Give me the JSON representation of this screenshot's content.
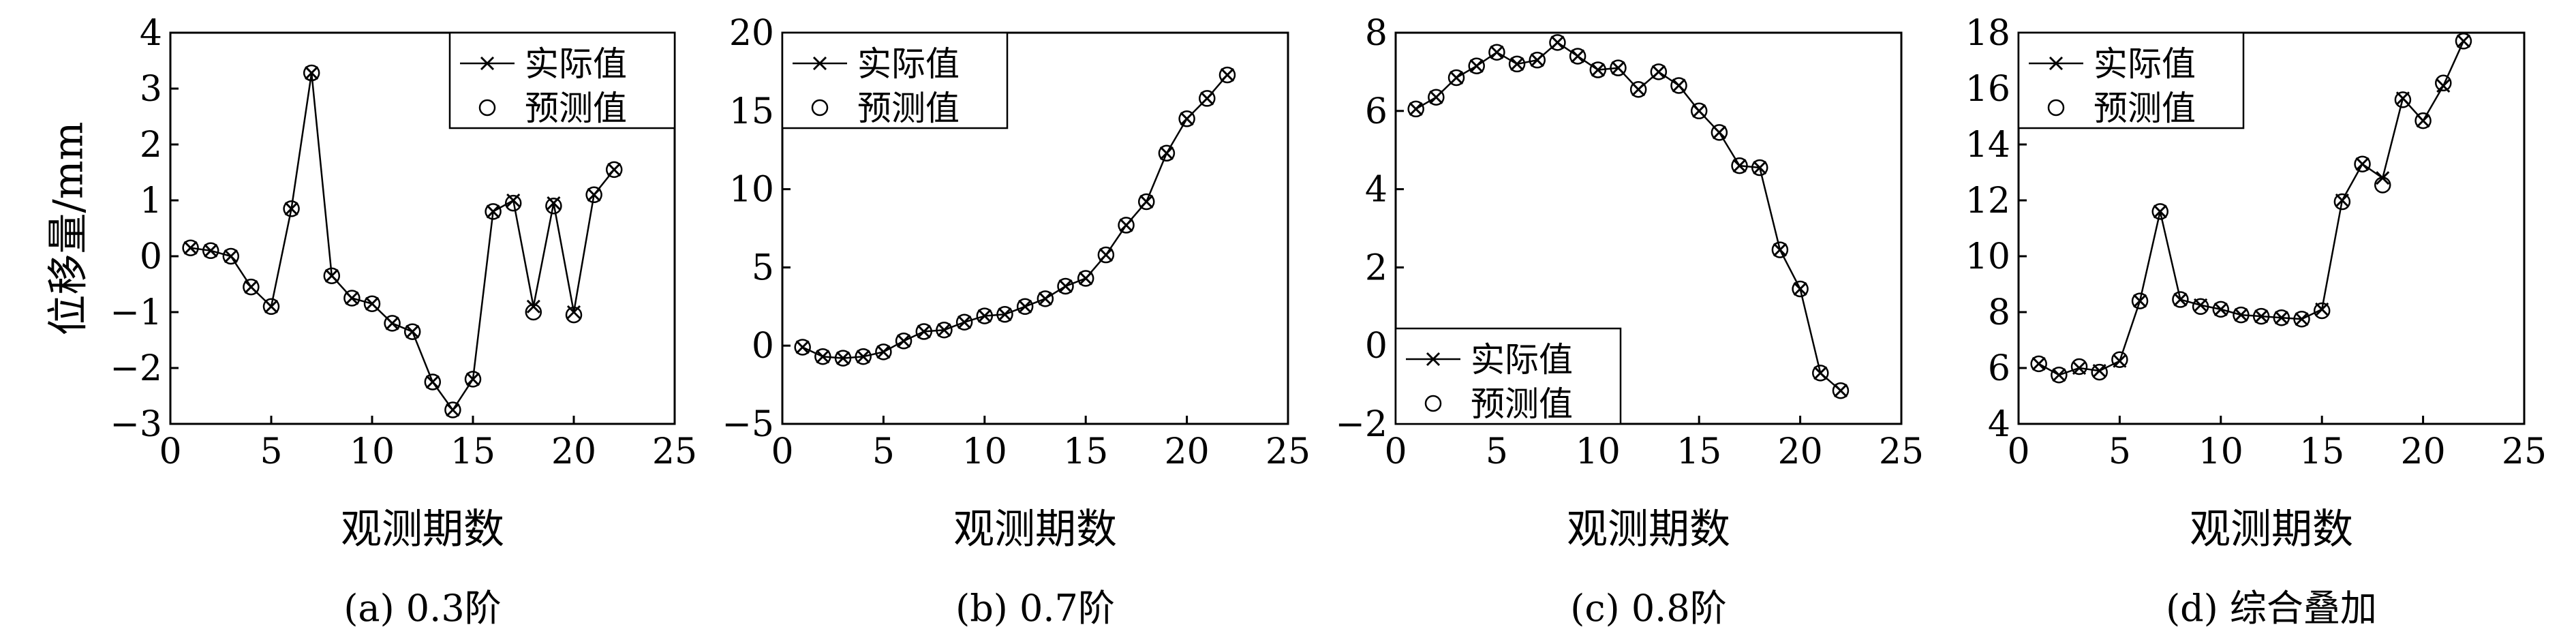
{
  "figure": {
    "ylabel": "位移量/mm"
  },
  "chart_data": [
    {
      "type": "line",
      "caption": "(a) 0.3阶",
      "xlabel": "观测期数",
      "ylabel": "位移量/mm",
      "xlim": [
        0,
        25
      ],
      "ylim": [
        -3,
        4
      ],
      "xticks": [
        0,
        5,
        10,
        15,
        20,
        25
      ],
      "yticks": [
        -3,
        -2,
        -1,
        0,
        1,
        2,
        3,
        4
      ],
      "legend_position": "top-right",
      "series": [
        {
          "name": "实际值",
          "marker": "x",
          "line": true,
          "x": [
            1,
            2,
            3,
            4,
            5,
            6,
            7,
            8,
            9,
            10,
            11,
            12,
            13,
            14,
            15,
            16,
            17,
            18,
            19,
            20,
            21,
            22
          ],
          "y": [
            0.15,
            0.1,
            0.0,
            -0.55,
            -0.9,
            0.85,
            3.28,
            -0.35,
            -0.75,
            -0.85,
            -1.2,
            -1.35,
            -2.25,
            -2.75,
            -2.2,
            0.8,
            1.0,
            -0.9,
            0.95,
            -1.0,
            1.1,
            1.55
          ]
        },
        {
          "name": "预测值",
          "marker": "o",
          "line": false,
          "x": [
            1,
            2,
            3,
            4,
            5,
            6,
            7,
            8,
            9,
            10,
            11,
            12,
            13,
            14,
            15,
            16,
            17,
            18,
            19,
            20,
            21,
            22
          ],
          "y": [
            0.15,
            0.1,
            0.0,
            -0.55,
            -0.9,
            0.85,
            3.28,
            -0.35,
            -0.75,
            -0.85,
            -1.2,
            -1.35,
            -2.25,
            -2.75,
            -2.2,
            0.8,
            0.95,
            -1.0,
            0.9,
            -1.05,
            1.1,
            1.55
          ]
        }
      ]
    },
    {
      "type": "line",
      "caption": "(b) 0.7阶",
      "xlabel": "观测期数",
      "xlim": [
        0,
        25
      ],
      "ylim": [
        -5,
        20
      ],
      "xticks": [
        0,
        5,
        10,
        15,
        20,
        25
      ],
      "yticks": [
        -5,
        0,
        5,
        10,
        15,
        20
      ],
      "legend_position": "top-left",
      "series": [
        {
          "name": "实际值",
          "marker": "x",
          "line": true,
          "x": [
            1,
            2,
            3,
            4,
            5,
            6,
            7,
            8,
            9,
            10,
            11,
            12,
            13,
            14,
            15,
            16,
            17,
            18,
            19,
            20,
            21,
            22
          ],
          "y": [
            -0.1,
            -0.7,
            -0.8,
            -0.7,
            -0.4,
            0.3,
            0.9,
            1.0,
            1.5,
            1.9,
            2.0,
            2.5,
            3.0,
            3.8,
            4.3,
            5.8,
            7.7,
            9.2,
            12.3,
            14.5,
            15.8,
            17.3
          ]
        },
        {
          "name": "预测值",
          "marker": "o",
          "line": false,
          "x": [
            1,
            2,
            3,
            4,
            5,
            6,
            7,
            8,
            9,
            10,
            11,
            12,
            13,
            14,
            15,
            16,
            17,
            18,
            19,
            20,
            21,
            22
          ],
          "y": [
            -0.1,
            -0.7,
            -0.8,
            -0.7,
            -0.4,
            0.3,
            0.9,
            1.0,
            1.5,
            1.9,
            2.0,
            2.5,
            3.0,
            3.8,
            4.3,
            5.8,
            7.7,
            9.2,
            12.3,
            14.5,
            15.8,
            17.3
          ]
        }
      ]
    },
    {
      "type": "line",
      "caption": "(c) 0.8阶",
      "xlabel": "观测期数",
      "xlim": [
        0,
        25
      ],
      "ylim": [
        -2,
        8
      ],
      "xticks": [
        0,
        5,
        10,
        15,
        20,
        25
      ],
      "yticks": [
        -2,
        0,
        2,
        4,
        6,
        8
      ],
      "legend_position": "bottom-left",
      "series": [
        {
          "name": "实际值",
          "marker": "x",
          "line": true,
          "x": [
            1,
            2,
            3,
            4,
            5,
            6,
            7,
            8,
            9,
            10,
            11,
            12,
            13,
            14,
            15,
            16,
            17,
            18,
            19,
            20,
            21,
            22
          ],
          "y": [
            6.05,
            6.35,
            6.85,
            7.15,
            7.5,
            7.2,
            7.3,
            7.75,
            7.4,
            7.05,
            7.1,
            6.55,
            7.0,
            6.65,
            6.0,
            5.45,
            4.6,
            4.55,
            2.45,
            1.45,
            -0.7,
            -1.15
          ]
        },
        {
          "name": "预测值",
          "marker": "o",
          "line": false,
          "x": [
            1,
            2,
            3,
            4,
            5,
            6,
            7,
            8,
            9,
            10,
            11,
            12,
            13,
            14,
            15,
            16,
            17,
            18,
            19,
            20,
            21,
            22
          ],
          "y": [
            6.05,
            6.35,
            6.85,
            7.15,
            7.5,
            7.2,
            7.3,
            7.75,
            7.4,
            7.05,
            7.1,
            6.55,
            7.0,
            6.65,
            6.0,
            5.45,
            4.6,
            4.55,
            2.45,
            1.45,
            -0.7,
            -1.15
          ]
        }
      ]
    },
    {
      "type": "line",
      "caption": "(d) 综合叠加",
      "xlabel": "观测期数",
      "xlim": [
        0,
        25
      ],
      "ylim": [
        4,
        18
      ],
      "xticks": [
        0,
        5,
        10,
        15,
        20,
        25
      ],
      "yticks": [
        4,
        6,
        8,
        10,
        12,
        14,
        16,
        18
      ],
      "legend_position": "top-left",
      "series": [
        {
          "name": "实际值",
          "marker": "x",
          "line": true,
          "x": [
            1,
            2,
            3,
            4,
            5,
            6,
            7,
            8,
            9,
            10,
            11,
            12,
            13,
            14,
            15,
            16,
            17,
            18,
            19,
            20,
            21,
            22
          ],
          "y": [
            6.15,
            5.75,
            6.0,
            5.9,
            6.25,
            8.4,
            11.6,
            8.45,
            8.25,
            8.1,
            7.9,
            7.85,
            7.8,
            7.75,
            8.1,
            12.0,
            13.3,
            12.8,
            15.65,
            14.85,
            16.1,
            17.7
          ]
        },
        {
          "name": "预测值",
          "marker": "o",
          "line": false,
          "x": [
            1,
            2,
            3,
            4,
            5,
            6,
            7,
            8,
            9,
            10,
            11,
            12,
            13,
            14,
            15,
            16,
            17,
            18,
            19,
            20,
            21,
            22
          ],
          "y": [
            6.15,
            5.75,
            6.05,
            5.85,
            6.3,
            8.4,
            11.6,
            8.45,
            8.2,
            8.1,
            7.9,
            7.85,
            7.8,
            7.75,
            8.05,
            11.95,
            13.3,
            12.55,
            15.6,
            14.85,
            16.2,
            17.7
          ]
        }
      ]
    }
  ]
}
